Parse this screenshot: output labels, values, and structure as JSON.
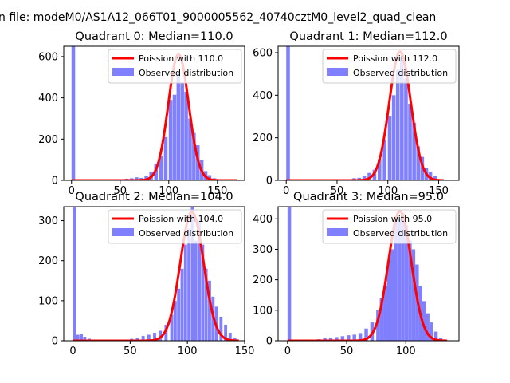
{
  "figure": {
    "suptitle": "n file: modeM0/AS1A12_066T01_9000005562_40740cztM0_level2_quad_clean"
  },
  "colors": {
    "poisson": "#ff0000",
    "observed": "#8080ff",
    "axis": "#000000"
  },
  "chart_data": [
    {
      "type": "bar",
      "title": "Quadrant 0: Median=110.0",
      "xlim": [
        -8,
        178
      ],
      "ylim": [
        0,
        650
      ],
      "xticks": [
        0,
        50,
        100,
        150
      ],
      "yticks": [
        0,
        200,
        400,
        600
      ],
      "legend": {
        "placement": "top-right",
        "labels": [
          "Poission with 110.0",
          "Observed distribution"
        ]
      },
      "series": [
        {
          "name": "Observed distribution",
          "kind": "histogram",
          "bin_width": 3.7,
          "bins": [
            [
              0,
              650
            ],
            [
              55,
              8
            ],
            [
              60,
              10
            ],
            [
              65,
              15
            ],
            [
              70,
              12
            ],
            [
              75,
              20
            ],
            [
              80,
              40
            ],
            [
              85,
              80
            ],
            [
              90,
              120
            ],
            [
              95,
              210
            ],
            [
              100,
              390
            ],
            [
              104,
              415
            ],
            [
              108,
              520
            ],
            [
              112,
              470
            ],
            [
              116,
              430
            ],
            [
              120,
              300
            ],
            [
              124,
              230
            ],
            [
              128,
              170
            ],
            [
              132,
              100
            ],
            [
              136,
              45
            ],
            [
              140,
              25
            ],
            [
              145,
              10
            ],
            [
              150,
              5
            ]
          ]
        },
        {
          "name": "Poission with 110.0",
          "kind": "poisson-curve",
          "mean": 110.0,
          "peak": 610,
          "x_range": [
            0,
            170
          ]
        }
      ]
    },
    {
      "type": "bar",
      "title": "Quadrant 1: Median=112.0",
      "xlim": [
        -8,
        170
      ],
      "ylim": [
        0,
        630
      ],
      "xticks": [
        0,
        50,
        100,
        150
      ],
      "yticks": [
        0,
        200,
        400,
        600
      ],
      "legend": {
        "placement": "top-right",
        "labels": [
          "Poission with 112.0",
          "Observed distribution"
        ]
      },
      "series": [
        {
          "name": "Observed distribution",
          "kind": "histogram",
          "bin_width": 3.6,
          "bins": [
            [
              0,
              630
            ],
            [
              60,
              5
            ],
            [
              65,
              10
            ],
            [
              70,
              12
            ],
            [
              75,
              22
            ],
            [
              80,
              35
            ],
            [
              85,
              50
            ],
            [
              90,
              100
            ],
            [
              95,
              190
            ],
            [
              100,
              300
            ],
            [
              104,
              400
            ],
            [
              108,
              520
            ],
            [
              112,
              580
            ],
            [
              116,
              480
            ],
            [
              120,
              360
            ],
            [
              124,
              270
            ],
            [
              128,
              160
            ],
            [
              132,
              110
            ],
            [
              136,
              60
            ],
            [
              140,
              40
            ],
            [
              145,
              20
            ],
            [
              150,
              5
            ]
          ]
        },
        {
          "name": "Poission with 112.0",
          "kind": "poisson-curve",
          "mean": 112.0,
          "peak": 605,
          "x_range": [
            0,
            155
          ]
        }
      ]
    },
    {
      "type": "bar",
      "title": "Quadrant 2: Median=104.0",
      "xlim": [
        -8,
        150
      ],
      "ylim": [
        0,
        335
      ],
      "xticks": [
        0,
        50,
        100,
        150
      ],
      "yticks": [
        0,
        100,
        200,
        300
      ],
      "legend": {
        "placement": "top-right",
        "labels": [
          "Poission with 104.0",
          "Observed distribution"
        ]
      },
      "series": [
        {
          "name": "Observed distribution",
          "kind": "histogram",
          "bin_width": 2.7,
          "bins": [
            [
              0,
              335
            ],
            [
              3,
              15
            ],
            [
              6,
              18
            ],
            [
              9,
              10
            ],
            [
              13,
              5
            ],
            [
              50,
              5
            ],
            [
              55,
              8
            ],
            [
              60,
              12
            ],
            [
              65,
              15
            ],
            [
              70,
              20
            ],
            [
              75,
              25
            ],
            [
              80,
              40
            ],
            [
              85,
              65
            ],
            [
              88,
              100
            ],
            [
              91,
              130
            ],
            [
              94,
              180
            ],
            [
              97,
              240
            ],
            [
              100,
              280
            ],
            [
              103,
              335
            ],
            [
              106,
              250
            ],
            [
              109,
              300
            ],
            [
              112,
              240
            ],
            [
              115,
              180
            ],
            [
              118,
              150
            ],
            [
              121,
              110
            ],
            [
              124,
              85
            ],
            [
              128,
              60
            ],
            [
              132,
              40
            ],
            [
              136,
              20
            ],
            [
              140,
              8
            ]
          ]
        },
        {
          "name": "Poission with 104.0",
          "kind": "poisson-curve",
          "mean": 104.0,
          "peak": 322,
          "x_range": [
            0,
            145
          ]
        }
      ]
    },
    {
      "type": "bar",
      "title": "Quadrant 3: Median=95.0",
      "xlim": [
        -8,
        145
      ],
      "ylim": [
        0,
        440
      ],
      "xticks": [
        0,
        50,
        100
      ],
      "yticks": [
        0,
        100,
        200,
        300,
        400
      ],
      "legend": {
        "placement": "top-right",
        "labels": [
          "Poission with 95.0",
          "Observed distribution"
        ]
      },
      "series": [
        {
          "name": "Observed distribution",
          "kind": "histogram",
          "bin_width": 3.0,
          "bins": [
            [
              0,
              440
            ],
            [
              25,
              5
            ],
            [
              30,
              8
            ],
            [
              35,
              10
            ],
            [
              40,
              12
            ],
            [
              45,
              15
            ],
            [
              50,
              18
            ],
            [
              55,
              20
            ],
            [
              60,
              25
            ],
            [
              65,
              40
            ],
            [
              70,
              60
            ],
            [
              75,
              100
            ],
            [
              78,
              140
            ],
            [
              81,
              180
            ],
            [
              84,
              260
            ],
            [
              87,
              300
            ],
            [
              90,
              390
            ],
            [
              93,
              400
            ],
            [
              96,
              420
            ],
            [
              99,
              380
            ],
            [
              102,
              330
            ],
            [
              105,
              300
            ],
            [
              108,
              250
            ],
            [
              111,
              180
            ],
            [
              114,
              130
            ],
            [
              117,
              90
            ],
            [
              120,
              60
            ],
            [
              124,
              30
            ],
            [
              128,
              10
            ]
          ]
        },
        {
          "name": "Poission with 95.0",
          "kind": "poisson-curve",
          "mean": 95.0,
          "peak": 425,
          "x_range": [
            0,
            135
          ]
        }
      ]
    }
  ]
}
